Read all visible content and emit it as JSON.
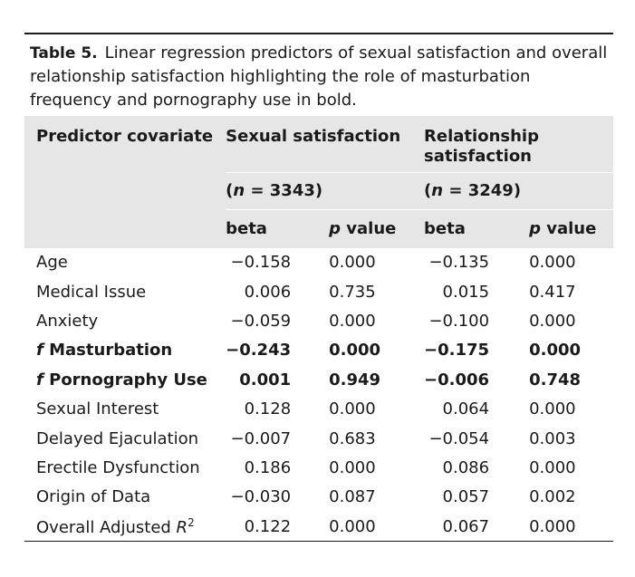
{
  "caption": {
    "label": "Table 5.",
    "text": "Linear regression predictors of sexual satisfaction and overall relationship satisfaction highlighting the role of masturbation frequency and pornography use in bold."
  },
  "header": {
    "col0": "Predictor covariate",
    "group1": "Sexual satisfaction",
    "group2": "Relationship satisfaction",
    "n1_prefix": "(",
    "n1_var": "n",
    "n1_value": " = 3343)",
    "n2_var": "n",
    "n2_value": " = 3249)",
    "beta": "beta",
    "p_var": "p",
    "p_rest": " value"
  },
  "rows": [
    {
      "name": "Age",
      "b1": "−0.158",
      "p1": "0.000",
      "b2": "−0.135",
      "p2": "0.000",
      "bold": false
    },
    {
      "name": "Medical Issue",
      "b1": "0.006",
      "p1": "0.735",
      "b2": "0.015",
      "p2": "0.417",
      "bold": false
    },
    {
      "name": "Anxiety",
      "b1": "−0.059",
      "p1": "0.000",
      "b2": "−0.100",
      "p2": "0.000",
      "bold": false
    },
    {
      "name": "Masturbation",
      "prefix": "f",
      "b1": "−0.243",
      "p1": "0.000",
      "b2": "−0.175",
      "p2": "0.000",
      "bold": true
    },
    {
      "name": "Pornography Use",
      "prefix": "f",
      "b1": "0.001",
      "p1": "0.949",
      "b2": "−0.006",
      "p2": "0.748",
      "bold": true
    },
    {
      "name": "Sexual Interest",
      "b1": "0.128",
      "p1": "0.000",
      "b2": "0.064",
      "p2": "0.000",
      "bold": false
    },
    {
      "name": "Delayed Ejaculation",
      "b1": "−0.007",
      "p1": "0.683",
      "b2": "−0.054",
      "p2": "0.003",
      "bold": false
    },
    {
      "name": "Erectile Dysfunction",
      "b1": "0.186",
      "p1": "0.000",
      "b2": "0.086",
      "p2": "0.000",
      "bold": false
    },
    {
      "name": "Origin of Data",
      "b1": "−0.030",
      "p1": "0.087",
      "b2": "0.057",
      "p2": "0.002",
      "bold": false
    },
    {
      "name": "Overall Adjusted ",
      "sup_var": "R",
      "sup": "2",
      "b1": "0.122",
      "p1": "0.000",
      "b2": "0.067",
      "p2": "0.000",
      "bold": false
    }
  ]
}
